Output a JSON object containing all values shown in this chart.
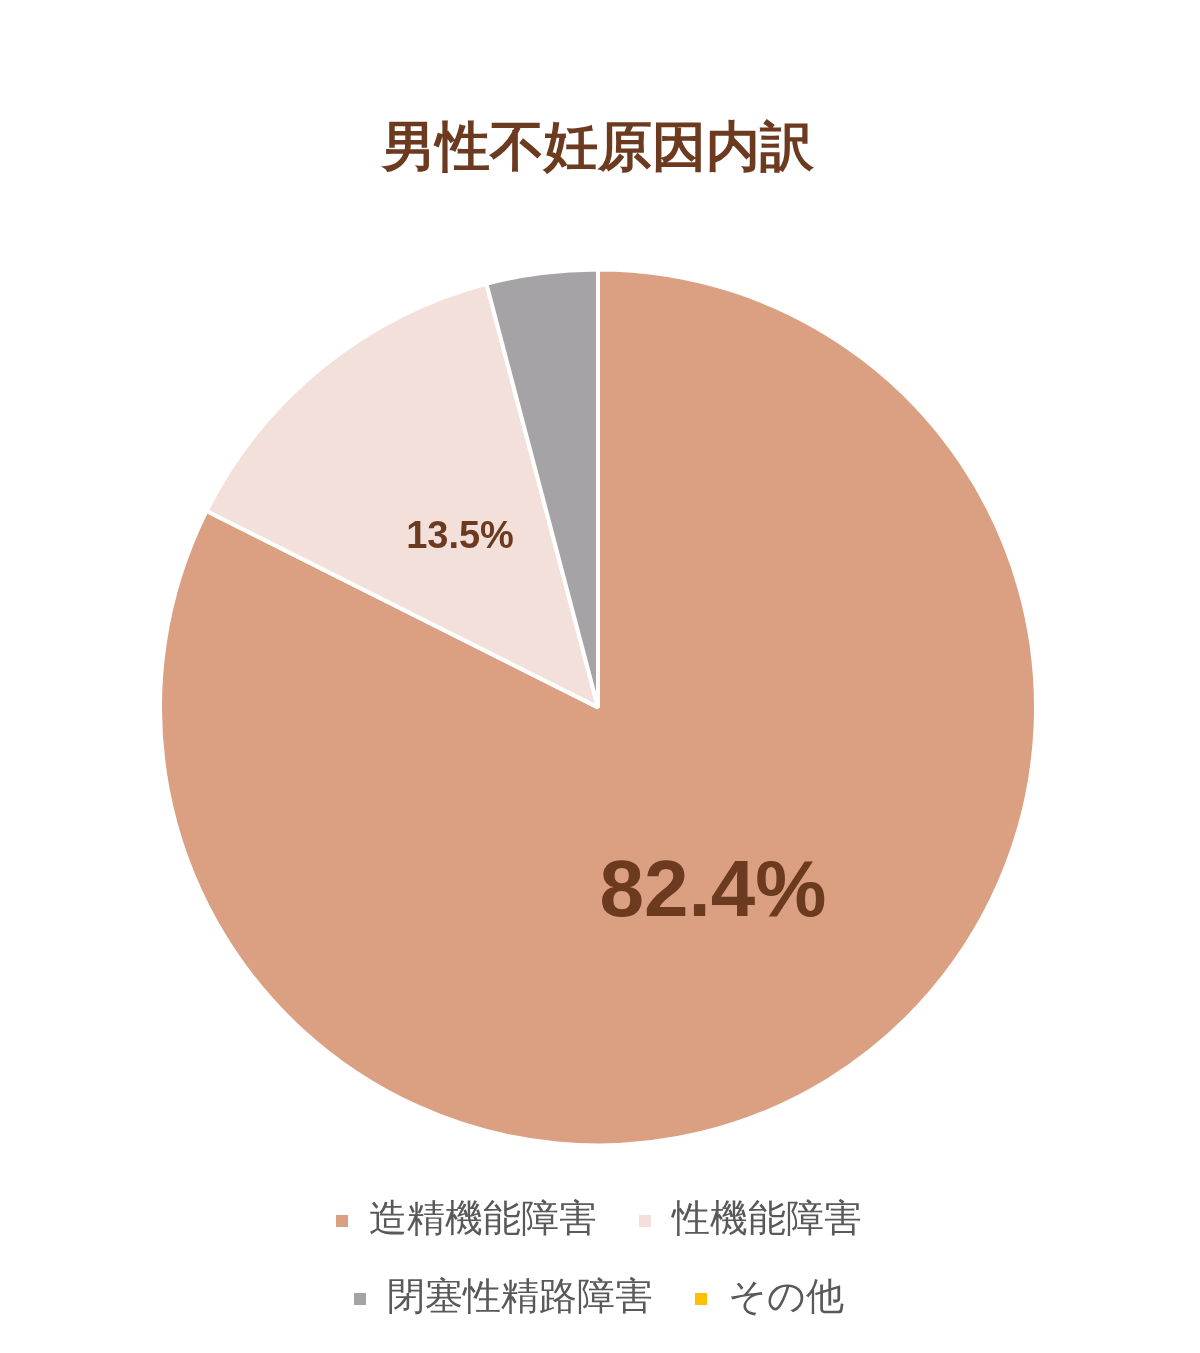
{
  "chart_data": {
    "type": "pie",
    "title": "男性不妊原因内訳",
    "categories": [
      "造精機能障害",
      "性機能障害",
      "閉塞性精路障害",
      "その他"
    ],
    "values": [
      82.4,
      13.5,
      4.1,
      0
    ],
    "colors": [
      "#dba082",
      "#f4e0da",
      "#a5a3a6",
      "#ffc000"
    ],
    "value_labels": [
      "82.4%",
      "13.5%",
      null,
      null
    ],
    "legend": "bottom"
  }
}
